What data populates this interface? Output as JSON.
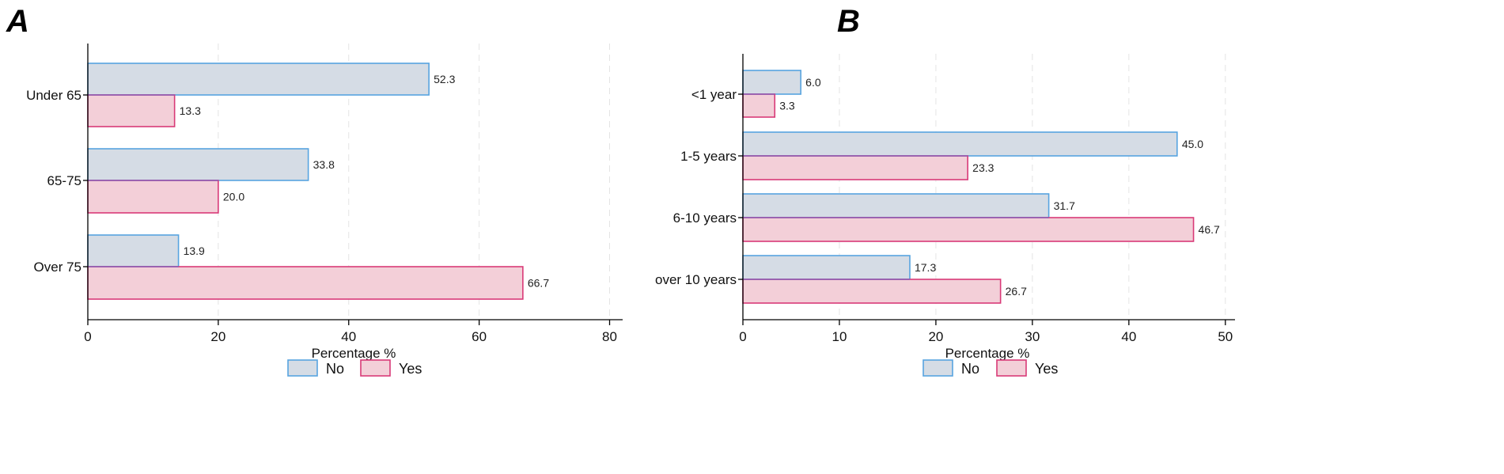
{
  "colors": {
    "no_fill": "#d5dce5",
    "no_stroke": "#58a4e0",
    "yes_fill": "#f3cfd8",
    "yes_stroke": "#d93a78",
    "grid": "#e4e4e4"
  },
  "chart_data": [
    {
      "panel": "A",
      "type": "bar",
      "orientation": "horizontal",
      "categories": [
        "Under 65",
        "65-75",
        "Over 75"
      ],
      "series": [
        {
          "name": "No",
          "values": [
            52.3,
            33.8,
            13.9
          ]
        },
        {
          "name": "Yes",
          "values": [
            13.3,
            20.0,
            66.7
          ]
        }
      ],
      "data_labels": {
        "No": [
          "52.3",
          "33.8",
          "13.9"
        ],
        "Yes": [
          "13.3",
          "20.0",
          "66.7"
        ]
      },
      "xlabel": "Percentage %",
      "ylabel": "",
      "xlim": [
        0,
        82
      ],
      "xticks": [
        0,
        20,
        40,
        60,
        80
      ],
      "grid": true,
      "legend": {
        "position": "bottom-center",
        "entries": [
          "No",
          "Yes"
        ]
      }
    },
    {
      "panel": "B",
      "type": "bar",
      "orientation": "horizontal",
      "categories": [
        "<1 year",
        "1-5 years",
        "6-10 years",
        "over 10 years"
      ],
      "series": [
        {
          "name": "No",
          "values": [
            6.0,
            45.0,
            31.7,
            17.3
          ]
        },
        {
          "name": "Yes",
          "values": [
            3.3,
            23.3,
            46.7,
            26.7
          ]
        }
      ],
      "data_labels": {
        "No": [
          "6.0",
          "45.0",
          "31.7",
          "17.3"
        ],
        "Yes": [
          "3.3",
          "23.3",
          "46.7",
          "26.7"
        ]
      },
      "xlabel": "Percentage %",
      "ylabel": "",
      "xlim": [
        0,
        51
      ],
      "xticks": [
        0,
        10,
        20,
        30,
        40,
        50
      ],
      "grid": true,
      "legend": {
        "position": "bottom-center",
        "entries": [
          "No",
          "Yes"
        ]
      }
    }
  ]
}
